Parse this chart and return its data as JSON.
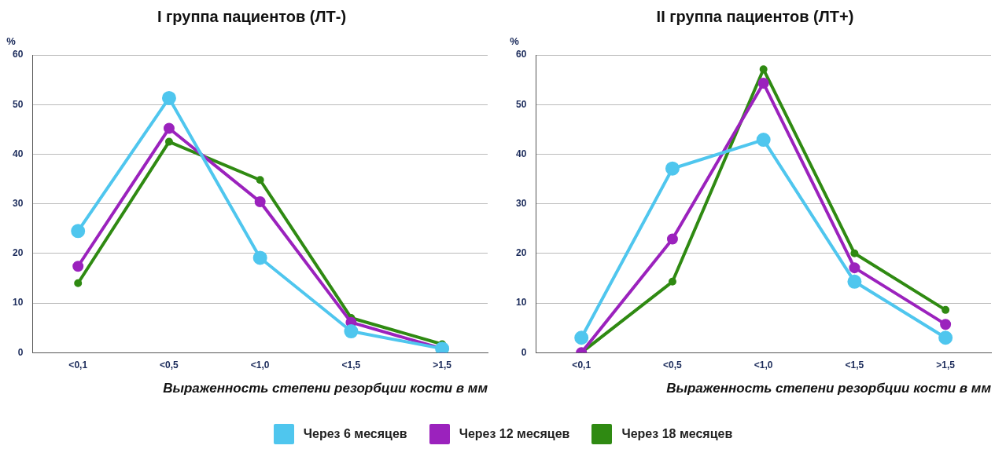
{
  "chart_data": [
    {
      "type": "line",
      "title": "I группа пациентов (ЛТ-)",
      "xlabel": "Выраженность степени резорбции кости в мм",
      "ylabel": "%",
      "categories": [
        "<0,1",
        "<0,5",
        "<1,0",
        "<1,5",
        ">1,5"
      ],
      "series": [
        {
          "name": "Через 6 месяцев",
          "color": "#4fc6ee",
          "values": [
            24.5,
            51.3,
            19.1,
            4.3,
            0.8
          ]
        },
        {
          "name": "Через 12 месяцев",
          "color": "#9b22bd",
          "values": [
            17.4,
            45.2,
            30.4,
            6.1,
            0.8
          ]
        },
        {
          "name": "Через 18 месяцев",
          "color": "#2f8a12",
          "values": [
            14,
            42.5,
            34.8,
            7,
            1.7
          ]
        }
      ],
      "ylim": [
        0,
        60
      ],
      "yticks": [
        0,
        10,
        20,
        30,
        40,
        50,
        60
      ],
      "grid": "y",
      "marker": "circle",
      "legend": "bottom"
    },
    {
      "type": "line",
      "title": "II группа пациентов (ЛТ+)",
      "xlabel": "Выраженность степени резорбции кости в мм",
      "ylabel": "%",
      "categories": [
        "<0,1",
        "<0,5",
        "<1,0",
        "<1,5",
        ">1,5"
      ],
      "series": [
        {
          "color": "#4fc6ee",
          "values": [
            3,
            37.1,
            42.9,
            14.3,
            3
          ]
        },
        {
          "color": "#9b22bd",
          "values": [
            0,
            22.9,
            54.3,
            17.1,
            5.7
          ]
        },
        {
          "color": "#2f8a12",
          "values": [
            0,
            14.3,
            57.1,
            20,
            8.6
          ]
        }
      ],
      "ylim": [
        0,
        60
      ],
      "yticks": [
        0,
        10,
        20,
        30,
        40,
        50,
        60
      ],
      "grid": "y",
      "marker": "circle"
    }
  ]
}
